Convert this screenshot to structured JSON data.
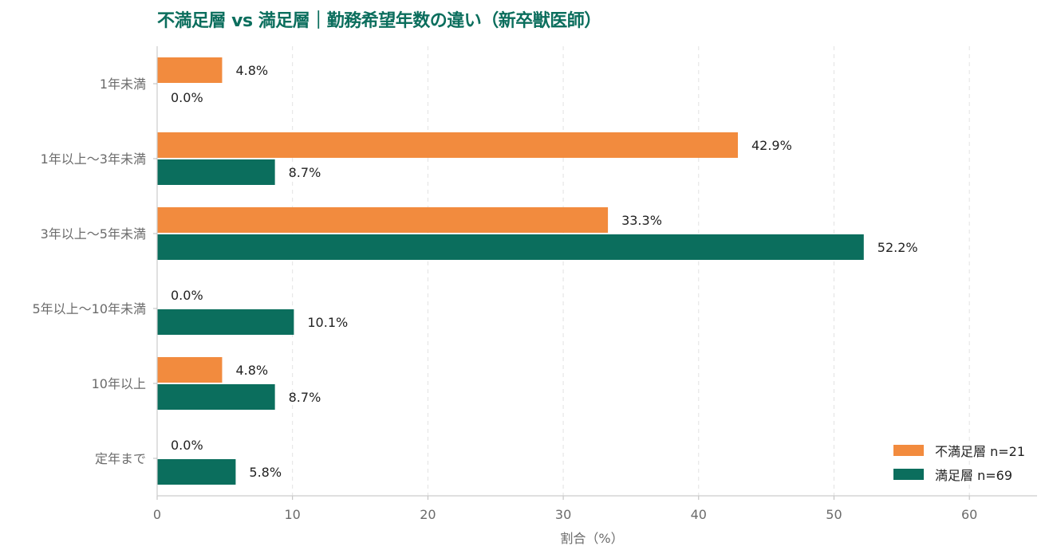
{
  "chart_data": {
    "type": "bar",
    "orientation": "horizontal",
    "title": "不満足層 vs 満足層｜勤務希望年数の違い（新卒獣医師）",
    "xlabel": "割合（%）",
    "ylabel": "",
    "xlim": [
      0,
      65
    ],
    "xticks": [
      0,
      10,
      20,
      30,
      40,
      50,
      60
    ],
    "grid": "vertical dashed",
    "legend_position": "bottom-right",
    "categories": [
      "1年未満",
      "1年以上〜3年未満",
      "3年以上〜5年未満",
      "5年以上〜10年未満",
      "10年以上",
      "定年まで"
    ],
    "series": [
      {
        "name": "不満足層 n=21",
        "color": "#f28b3e",
        "values": [
          4.8,
          42.9,
          33.3,
          0.0,
          4.8,
          0.0
        ],
        "labels": [
          "4.8%",
          "42.9%",
          "33.3%",
          "0.0%",
          "4.8%",
          "0.0%"
        ]
      },
      {
        "name": "満足層 n=69",
        "color": "#0b6e5d",
        "values": [
          0.0,
          8.7,
          52.2,
          10.1,
          8.7,
          5.8
        ],
        "labels": [
          "0.0%",
          "8.7%",
          "52.2%",
          "10.1%",
          "8.7%",
          "5.8%"
        ]
      }
    ]
  }
}
